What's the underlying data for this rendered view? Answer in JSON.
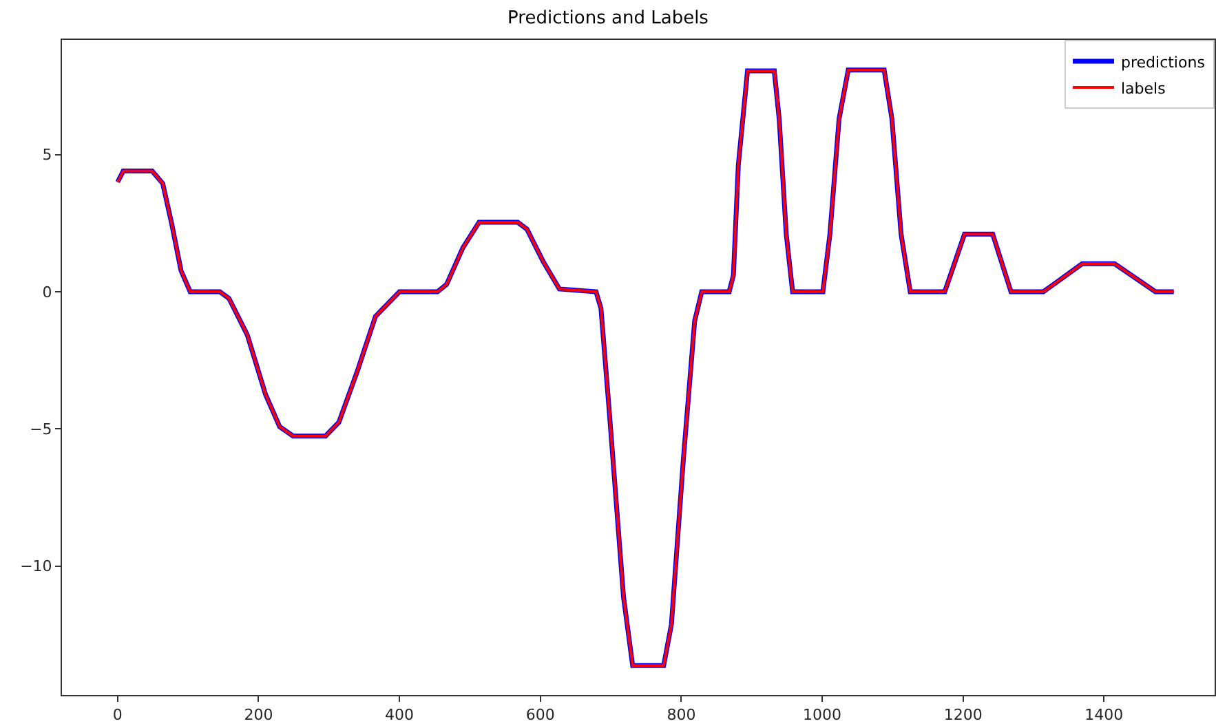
{
  "chart_data": {
    "type": "line",
    "title": "Predictions and Labels",
    "x": [
      0,
      8,
      49,
      64,
      77,
      90,
      103,
      145,
      158,
      184,
      210,
      230,
      249,
      295,
      314,
      340,
      366,
      400,
      454,
      467,
      490,
      513,
      568,
      581,
      604,
      627,
      679,
      686,
      698,
      718,
      731,
      775,
      786,
      803,
      819,
      829,
      868,
      874,
      881,
      894,
      932,
      939,
      949,
      958,
      1001,
      1011,
      1024,
      1037,
      1088,
      1099,
      1112,
      1125,
      1174,
      1202,
      1242,
      1268,
      1314,
      1369,
      1415,
      1473,
      1499
    ],
    "series": [
      {
        "name": "predictions",
        "color": "#0000ff",
        "values": [
          4.0,
          4.4,
          4.4,
          3.95,
          2.45,
          0.77,
          0,
          0,
          -0.24,
          -1.57,
          -3.75,
          -4.92,
          -5.26,
          -5.26,
          -4.76,
          -2.91,
          -0.9,
          0,
          0,
          0.27,
          1.6,
          2.53,
          2.53,
          2.28,
          1.1,
          0.1,
          0,
          -0.6,
          -4.42,
          -11.12,
          -13.63,
          -13.63,
          -12.13,
          -6.1,
          -1.07,
          0,
          0,
          0.6,
          4.62,
          8.05,
          8.05,
          6.3,
          2.1,
          0,
          0,
          2.1,
          6.3,
          8.08,
          8.08,
          6.3,
          2.1,
          0,
          0,
          2.1,
          2.1,
          0,
          0,
          1.02,
          1.02,
          0,
          0
        ]
      },
      {
        "name": "labels",
        "color": "#ff0000",
        "values": [
          4.0,
          4.4,
          4.4,
          3.95,
          2.45,
          0.77,
          0,
          0,
          -0.24,
          -1.57,
          -3.75,
          -4.92,
          -5.26,
          -5.26,
          -4.76,
          -2.91,
          -0.9,
          0,
          0,
          0.27,
          1.6,
          2.53,
          2.53,
          2.28,
          1.1,
          0.1,
          0,
          -0.6,
          -4.42,
          -11.12,
          -13.63,
          -13.63,
          -12.13,
          -6.1,
          -1.07,
          0,
          0,
          0.6,
          4.62,
          8.05,
          8.05,
          6.3,
          2.1,
          0,
          0,
          2.1,
          6.3,
          8.08,
          8.08,
          6.3,
          2.1,
          0,
          0,
          2.1,
          2.1,
          0,
          0,
          1.02,
          1.02,
          0,
          0
        ]
      }
    ],
    "xlim": [
      -79,
      1557
    ],
    "ylim": [
      -14.7,
      9.18
    ],
    "xticks": [
      0,
      200,
      400,
      600,
      800,
      1000,
      1200,
      1400
    ],
    "yticks": [
      {
        "value": -10,
        "label": "−10"
      },
      {
        "value": -5,
        "label": "−5"
      },
      0,
      5
    ],
    "grid": false,
    "legend": "top right",
    "marker": "none",
    "line_style": "solid"
  }
}
